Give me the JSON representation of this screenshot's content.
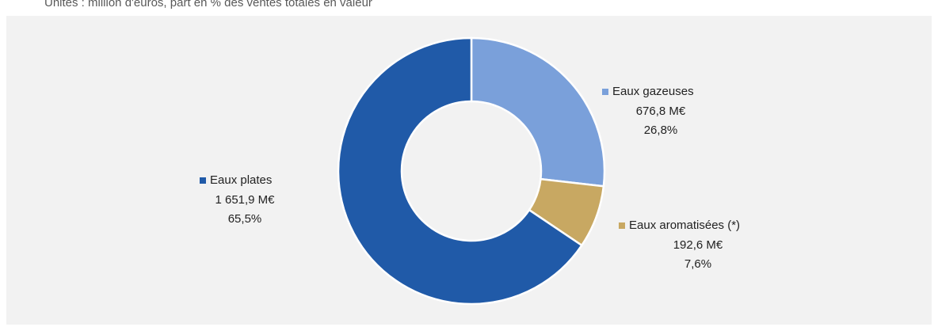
{
  "chart_data": {
    "type": "donut",
    "subtitle": "Unités : million d'euros, part en % des ventes totales en valeur",
    "categories": [
      "Eaux gazeuses",
      "Eaux aromatisées (*)",
      "Eaux plates"
    ],
    "values": [
      26.8,
      7.6,
      65.5
    ],
    "value_labels": [
      "26,8%",
      "7,6%",
      "65,5%"
    ],
    "amounts": [
      676.8,
      192.6,
      1651.9
    ],
    "amount_labels": [
      "676,8 M€",
      "192,6 M€",
      "1 651,9 M€"
    ],
    "colors": [
      "#7aa0da",
      "#c8a862",
      "#205aa8"
    ]
  }
}
